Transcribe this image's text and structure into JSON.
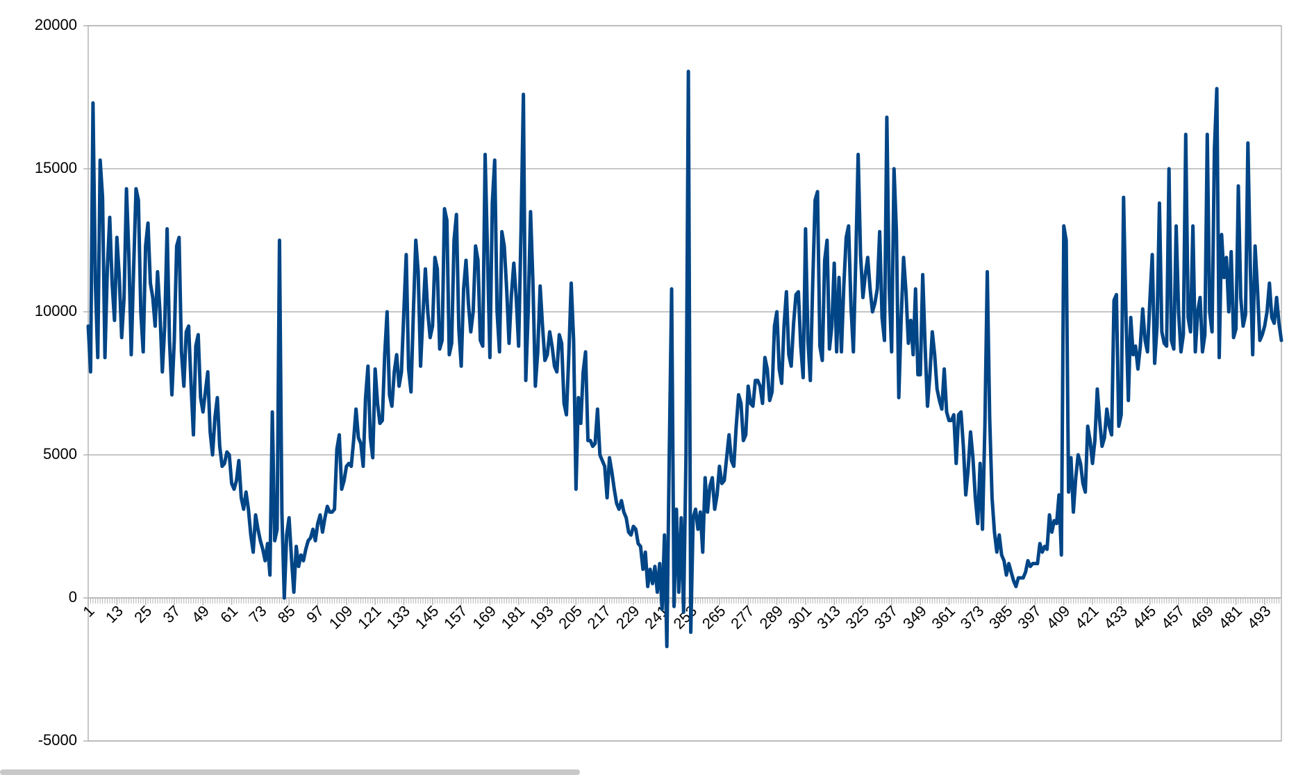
{
  "chart_data": {
    "type": "line",
    "color": "#004586",
    "grid": true,
    "ylim": [
      -5000,
      20000
    ],
    "yticks": [
      -5000,
      0,
      5000,
      10000,
      15000,
      20000
    ],
    "xlim": [
      1,
      500
    ],
    "xticks": [
      1,
      13,
      25,
      37,
      49,
      61,
      73,
      85,
      97,
      109,
      121,
      133,
      145,
      157,
      169,
      181,
      193,
      205,
      217,
      229,
      241,
      253,
      265,
      277,
      289,
      301,
      313,
      325,
      337,
      349,
      361,
      373,
      385,
      397,
      409,
      421,
      433,
      445,
      457,
      469,
      481,
      493
    ],
    "x": [
      1,
      2,
      3,
      4,
      5,
      6,
      7,
      8,
      9,
      10,
      11,
      12,
      13,
      14,
      15,
      16,
      17,
      18,
      19,
      20,
      21,
      22,
      23,
      24,
      25,
      26,
      27,
      28,
      29,
      30,
      31,
      32,
      33,
      34,
      35,
      36,
      37,
      38,
      39,
      40,
      41,
      42,
      43,
      44,
      45,
      46,
      47,
      48,
      49,
      50,
      51,
      52,
      53,
      54,
      55,
      56,
      57,
      58,
      59,
      60,
      61,
      62,
      63,
      64,
      65,
      66,
      67,
      68,
      69,
      70,
      71,
      72,
      73,
      74,
      75,
      76,
      77,
      78,
      79,
      80,
      81,
      82,
      83,
      84,
      85,
      86,
      87,
      88,
      89,
      90,
      91,
      92,
      93,
      94,
      95,
      96,
      97,
      98,
      99,
      100,
      101,
      102,
      103,
      104,
      105,
      106,
      107,
      108,
      109,
      110,
      111,
      112,
      113,
      114,
      115,
      116,
      117,
      118,
      119,
      120,
      121,
      122,
      123,
      124,
      125,
      126,
      127,
      128,
      129,
      130,
      131,
      132,
      133,
      134,
      135,
      136,
      137,
      138,
      139,
      140,
      141,
      142,
      143,
      144,
      145,
      146,
      147,
      148,
      149,
      150,
      151,
      152,
      153,
      154,
      155,
      156,
      157,
      158,
      159,
      160,
      161,
      162,
      163,
      164,
      165,
      166,
      167,
      168,
      169,
      170,
      171,
      172,
      173,
      174,
      175,
      176,
      177,
      178,
      179,
      180,
      181,
      182,
      183,
      184,
      185,
      186,
      187,
      188,
      189,
      190,
      191,
      192,
      193,
      194,
      195,
      196,
      197,
      198,
      199,
      200,
      201,
      202,
      203,
      204,
      205,
      206,
      207,
      208,
      209,
      210,
      211,
      212,
      213,
      214,
      215,
      216,
      217,
      218,
      219,
      220,
      221,
      222,
      223,
      224,
      225,
      226,
      227,
      228,
      229,
      230,
      231,
      232,
      233,
      234,
      235,
      236,
      237,
      238,
      239,
      240,
      241,
      242,
      243,
      244,
      245,
      246,
      247,
      248,
      249,
      250,
      251,
      252,
      253,
      254,
      255,
      256,
      257,
      258,
      259,
      260,
      261,
      262,
      263,
      264,
      265,
      266,
      267,
      268,
      269,
      270,
      271,
      272,
      273,
      274,
      275,
      276,
      277,
      278,
      279,
      280,
      281,
      282,
      283,
      284,
      285,
      286,
      287,
      288,
      289,
      290,
      291,
      292,
      293,
      294,
      295,
      296,
      297,
      298,
      299,
      300,
      301,
      302,
      303,
      304,
      305,
      306,
      307,
      308,
      309,
      310,
      311,
      312,
      313,
      314,
      315,
      316,
      317,
      318,
      319,
      320,
      321,
      322,
      323,
      324,
      325,
      326,
      327,
      328,
      329,
      330,
      331,
      332,
      333,
      334,
      335,
      336,
      337,
      338,
      339,
      340,
      341,
      342,
      343,
      344,
      345,
      346,
      347,
      348,
      349,
      350,
      351,
      352,
      353,
      354,
      355,
      356,
      357,
      358,
      359,
      360,
      361,
      362,
      363,
      364,
      365,
      366,
      367,
      368,
      369,
      370,
      371,
      372,
      373,
      374,
      375,
      376,
      377,
      378,
      379,
      380,
      381,
      382,
      383,
      384,
      385,
      386,
      387,
      388,
      389,
      390,
      391,
      392,
      393,
      394,
      395,
      396,
      397,
      398,
      399,
      400,
      401,
      402,
      403,
      404,
      405,
      406,
      407,
      408,
      409,
      410,
      411,
      412,
      413,
      414,
      415,
      416,
      417,
      418,
      419,
      420,
      421,
      422,
      423,
      424,
      425,
      426,
      427,
      428,
      429,
      430,
      431,
      432,
      433,
      434,
      435,
      436,
      437,
      438,
      439,
      440,
      441,
      442,
      443,
      444,
      445,
      446,
      447,
      448,
      449,
      450,
      451,
      452,
      453,
      454,
      455,
      456,
      457,
      458,
      459,
      460,
      461,
      462,
      463,
      464,
      465,
      466,
      467,
      468,
      469,
      470,
      471,
      472,
      473,
      474,
      475,
      476,
      477,
      478,
      479,
      480,
      481,
      482,
      483,
      484,
      485,
      486,
      487,
      488,
      489,
      490,
      491,
      492,
      493,
      494,
      495,
      496,
      497,
      498,
      499,
      500
    ],
    "values": [
      9500,
      7900,
      17300,
      11000,
      8400,
      15300,
      14000,
      8400,
      11500,
      13300,
      11000,
      9700,
      12600,
      11200,
      9100,
      10500,
      14300,
      12000,
      8500,
      11500,
      14300,
      13900,
      10000,
      8600,
      12300,
      13100,
      11000,
      10500,
      9500,
      11400,
      10000,
      7900,
      9500,
      12900,
      9000,
      7100,
      9000,
      12300,
      12600,
      8600,
      7400,
      9300,
      9500,
      7500,
      5700,
      8800,
      9200,
      7000,
      6500,
      7200,
      7900,
      5800,
      5000,
      6300,
      7000,
      5300,
      4600,
      4700,
      5100,
      5000,
      4000,
      3800,
      4100,
      4800,
      3500,
      3100,
      3700,
      3100,
      2200,
      1600,
      2900,
      2400,
      2000,
      1700,
      1300,
      1900,
      800,
      6500,
      2000,
      2400,
      12500,
      3000,
      0,
      2200,
      2800,
      1400,
      200,
      1800,
      1100,
      1500,
      1300,
      1700,
      2000,
      2100,
      2400,
      2000,
      2600,
      2900,
      2300,
      2800,
      3200,
      3000,
      3000,
      3100,
      5200,
      5700,
      3800,
      4100,
      4600,
      4700,
      4600,
      5500,
      6600,
      5600,
      5400,
      4600,
      7000,
      8100,
      5600,
      4900,
      8000,
      6800,
      6100,
      6200,
      8500,
      10000,
      7100,
      6700,
      7900,
      8500,
      7400,
      7900,
      10000,
      12000,
      8000,
      7200,
      10000,
      12500,
      11400,
      8100,
      9900,
      11500,
      10000,
      9100,
      9500,
      11900,
      11500,
      8700,
      9000,
      13600,
      13200,
      8500,
      8900,
      12500,
      13400,
      9400,
      8100,
      10800,
      11800,
      10300,
      9300,
      10000,
      12300,
      11800,
      9000,
      8800,
      15500,
      12000,
      8400,
      13800,
      15300,
      10000,
      8600,
      12800,
      12300,
      10800,
      8900,
      10600,
      11700,
      10500,
      8800,
      12800,
      17600,
      7600,
      10000,
      13500,
      11000,
      7400,
      8600,
      10900,
      9500,
      8300,
      8500,
      9300,
      8800,
      8100,
      7900,
      9200,
      8900,
      6800,
      6400,
      8500,
      11000,
      9000,
      3800,
      7000,
      6100,
      7900,
      8600,
      5500,
      5500,
      5300,
      5400,
      6600,
      5000,
      4800,
      4600,
      3500,
      4900,
      4400,
      3800,
      3300,
      3100,
      3400,
      3000,
      2800,
      2300,
      2200,
      2500,
      2400,
      1900,
      1800,
      1000,
      1600,
      400,
      1000,
      500,
      1100,
      200,
      1200,
      -400,
      2200,
      -1700,
      5000,
      10800,
      -300,
      3100,
      200,
      2800,
      -500,
      5000,
      18400,
      -1200,
      2800,
      3100,
      2400,
      3000,
      1600,
      4200,
      3000,
      3900,
      4200,
      3100,
      3600,
      4600,
      4000,
      4100,
      4900,
      5700,
      4800,
      4600,
      6000,
      7100,
      6800,
      5500,
      5700,
      7400,
      6800,
      6700,
      7600,
      7600,
      7400,
      6800,
      8400,
      8000,
      6900,
      7200,
      9500,
      10000,
      8000,
      7500,
      9500,
      10700,
      8500,
      8100,
      9600,
      10600,
      10700,
      8800,
      7700,
      12900,
      9000,
      7600,
      11000,
      13900,
      14200,
      8800,
      8300,
      11800,
      12500,
      8700,
      9500,
      11700,
      8600,
      11200,
      8600,
      10900,
      12600,
      13000,
      10200,
      8600,
      11800,
      15500,
      12000,
      10500,
      11300,
      11900,
      10800,
      10000,
      10300,
      10800,
      12800,
      9800,
      9000,
      16800,
      10800,
      8600,
      15000,
      12800,
      7000,
      9800,
      11900,
      10700,
      8900,
      9700,
      8500,
      10800,
      7800,
      7800,
      11300,
      8800,
      6700,
      7800,
      9300,
      8500,
      7300,
      6900,
      6600,
      8000,
      6500,
      6200,
      6200,
      6400,
      4700,
      6400,
      6500,
      5300,
      3600,
      4500,
      5800,
      4900,
      3500,
      2600,
      4700,
      2400,
      6000,
      11400,
      6300,
      3500,
      2300,
      1600,
      2200,
      1500,
      1300,
      800,
      1200,
      900,
      600,
      400,
      700,
      700,
      700,
      900,
      1300,
      1100,
      1200,
      1200,
      1200,
      1900,
      1600,
      1800,
      1700,
      2900,
      2300,
      2700,
      2600,
      3600,
      1500,
      13000,
      12500,
      3700,
      4900,
      3000,
      4200,
      5000,
      4700,
      4000,
      3700,
      6000,
      5500,
      4700,
      5500,
      7300,
      6200,
      5300,
      5600,
      6600,
      6000,
      5700,
      10400,
      10600,
      6000,
      6400,
      14000,
      9900,
      6900,
      9800,
      8500,
      8800,
      8000,
      8800,
      10100,
      9000,
      8600,
      10400,
      12000,
      8200,
      9500,
      13800,
      9300,
      8900,
      8800,
      15000,
      9000,
      8700,
      13000,
      10000,
      8600,
      9200,
      16200,
      9800,
      9300,
      13000,
      8600,
      10000,
      10500,
      8600,
      9200,
      16200,
      10000,
      9300,
      15700,
      17800,
      8400,
      12700,
      11200,
      11900,
      10000,
      12100,
      9100,
      9400,
      14400,
      10500,
      9500,
      9900,
      15900,
      11600,
      8500,
      12300,
      10800,
      9000,
      9200,
      9500,
      10000,
      11000,
      9800,
      9600,
      10500,
      9600,
      9000
    ]
  }
}
